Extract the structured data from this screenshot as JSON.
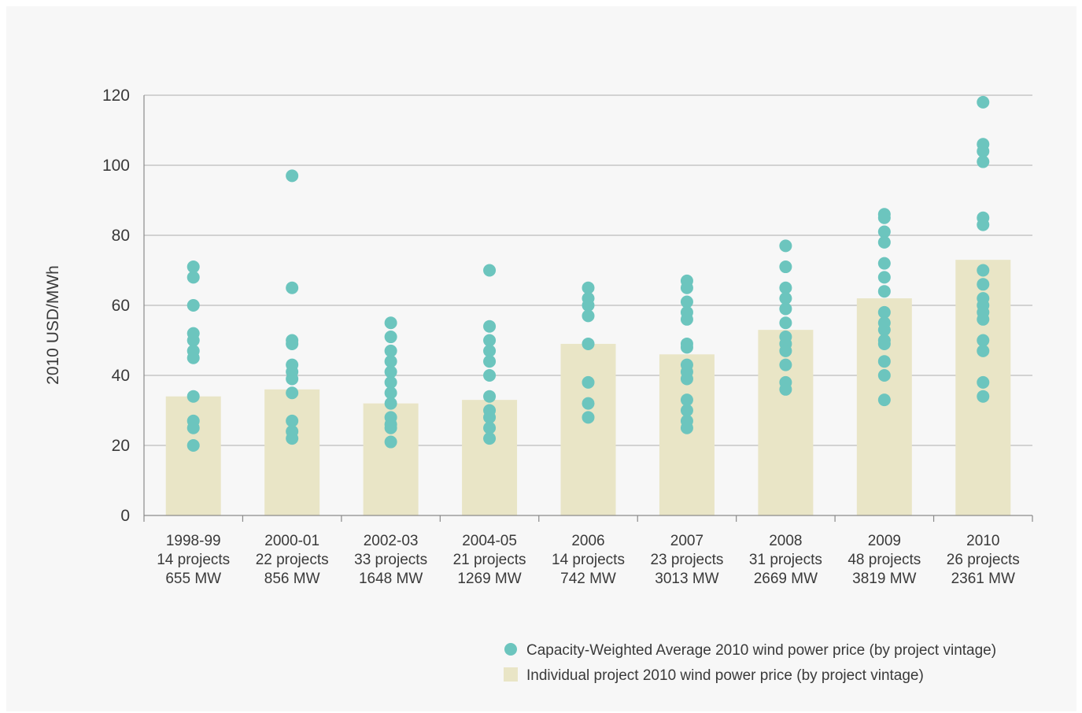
{
  "chart_data": {
    "type": "bar",
    "title": "",
    "xlabel": "",
    "ylabel": "2010 USD/MWh",
    "ylim": [
      0,
      120
    ],
    "yticks": [
      0,
      20,
      40,
      60,
      80,
      100,
      120
    ],
    "grid": true,
    "legend_position": "bottom-right",
    "categories": [
      {
        "label": "1998-99",
        "projects": "14 projects",
        "capacity": "655 MW"
      },
      {
        "label": "2000-01",
        "projects": "22 projects",
        "capacity": "856 MW"
      },
      {
        "label": "2002-03",
        "projects": "33 projects",
        "capacity": "1648 MW"
      },
      {
        "label": "2004-05",
        "projects": "21 projects",
        "capacity": "1269 MW"
      },
      {
        "label": "2006",
        "projects": "14 projects",
        "capacity": "742 MW"
      },
      {
        "label": "2007",
        "projects": "23 projects",
        "capacity": "3013 MW"
      },
      {
        "label": "2008",
        "projects": "31 projects",
        "capacity": "2669 MW"
      },
      {
        "label": "2009",
        "projects": "48 projects",
        "capacity": "3819 MW"
      },
      {
        "label": "2010",
        "projects": "26 projects",
        "capacity": "2361 MW"
      }
    ],
    "series": [
      {
        "name": "Individual project 2010 wind power price (by project vintage)",
        "kind": "bar",
        "color": "#e9e5c6",
        "values": [
          34,
          36,
          32,
          33,
          49,
          46,
          53,
          62,
          73
        ]
      },
      {
        "name": "Capacity-Weighted Average 2010 wind power price (by project vintage)",
        "kind": "scatter",
        "color": "#6cc5be",
        "points": [
          [
            71,
            68,
            60,
            52,
            50,
            47,
            45,
            34,
            27,
            25,
            20
          ],
          [
            97,
            65,
            50,
            49,
            43,
            41,
            39,
            35,
            27,
            24,
            22
          ],
          [
            55,
            51,
            47,
            44,
            41,
            38,
            35,
            32,
            28,
            26,
            25,
            21
          ],
          [
            70,
            54,
            50,
            47,
            44,
            40,
            34,
            30,
            28,
            25,
            22
          ],
          [
            65,
            62,
            60,
            57,
            49,
            38,
            32,
            28
          ],
          [
            67,
            65,
            61,
            58,
            56,
            49,
            48,
            43,
            41,
            39,
            33,
            30,
            27,
            25
          ],
          [
            77,
            71,
            65,
            62,
            59,
            55,
            51,
            49,
            47,
            43,
            38,
            36
          ],
          [
            86,
            85,
            81,
            78,
            72,
            68,
            64,
            58,
            55,
            53,
            50,
            49,
            44,
            40,
            33
          ],
          [
            118,
            106,
            104,
            101,
            85,
            83,
            70,
            66,
            62,
            60,
            58,
            56,
            50,
            47,
            38,
            34
          ]
        ]
      }
    ]
  }
}
